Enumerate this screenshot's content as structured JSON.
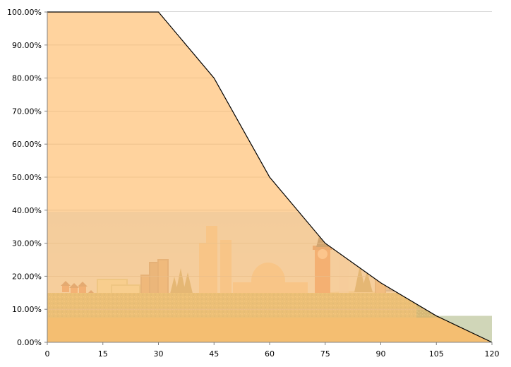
{
  "chart_data": {
    "type": "area",
    "title": "",
    "xlabel": "",
    "ylabel": "",
    "x": [
      0,
      15,
      30,
      45,
      60,
      75,
      90,
      105,
      120
    ],
    "x_ticks": [
      "0",
      "15",
      "30",
      "45",
      "60",
      "75",
      "90",
      "105",
      "120"
    ],
    "y_ticks": [
      "0.00%",
      "10.00%",
      "20.00%",
      "30.00%",
      "40.00%",
      "50.00%",
      "60.00%",
      "70.00%",
      "80.00%",
      "90.00%",
      "100.00%"
    ],
    "xlim": [
      0,
      120
    ],
    "ylim": [
      0,
      1
    ],
    "grid": true,
    "series": [
      {
        "values": [
          1.0,
          1.0,
          1.0,
          0.8,
          0.5,
          0.3,
          0.18,
          0.08,
          0.0
        ],
        "color": "#FFC989"
      }
    ],
    "background": "illustrated landscape picture (countryside houses, city skyline, clock tower, trees, sky)"
  }
}
